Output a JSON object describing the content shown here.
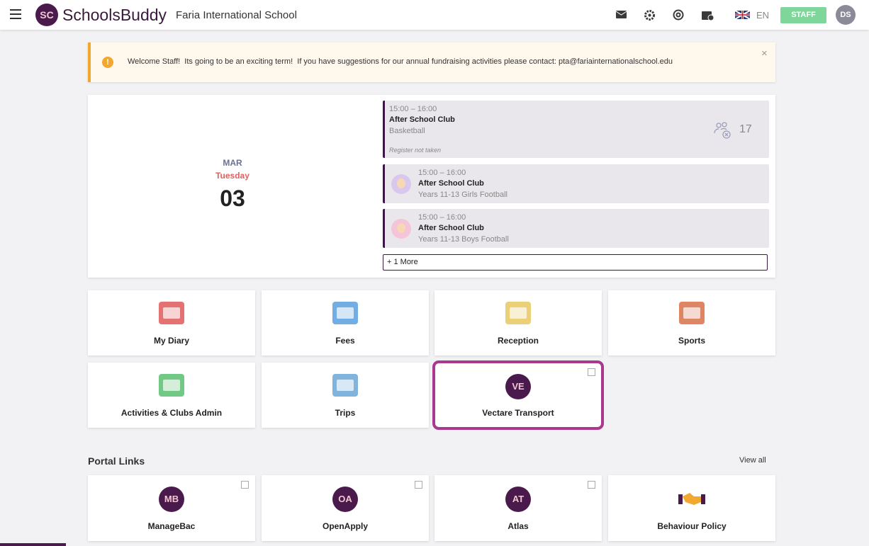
{
  "header": {
    "logo": "SC",
    "brand": "SchoolsBuddy",
    "school": "Faria International School",
    "language": "EN",
    "role": "STAFF",
    "avatar": "DS"
  },
  "banner": {
    "message": "Welcome Staff!  Its going to be an exciting term!  If you have suggestions for our annual fundraising activities please contact: pta@fariainternationalschool.edu"
  },
  "date": {
    "month": "MAR",
    "weekday": "Tuesday",
    "day": "03"
  },
  "events": [
    {
      "time": "15:00 – 16:00",
      "title": "After School Club",
      "subtitle": "Basketball",
      "note": "Register not taken",
      "count": 17
    },
    {
      "time": "15:00 – 16:00",
      "title": "After School Club",
      "subtitle": "Years 11-13 Girls Football"
    },
    {
      "time": "15:00 – 16:00",
      "title": "After School Club",
      "subtitle": "Years 11-13 Boys Football"
    }
  ],
  "more": "+ 1 More",
  "tiles": [
    {
      "label": "My Diary"
    },
    {
      "label": "Fees"
    },
    {
      "label": "Reception"
    },
    {
      "label": "Sports"
    },
    {
      "label": "Activities & Clubs Admin"
    },
    {
      "label": "Trips"
    },
    {
      "label": "Vectare Transport",
      "logo": "VE"
    }
  ],
  "portal": {
    "title": "Portal Links",
    "view_all": "View all",
    "links": [
      {
        "logo": "MB",
        "label": "ManageBac"
      },
      {
        "logo": "OA",
        "label": "OpenApply"
      },
      {
        "logo": "AT",
        "label": "Atlas"
      },
      {
        "label": "Behaviour Policy"
      }
    ]
  }
}
